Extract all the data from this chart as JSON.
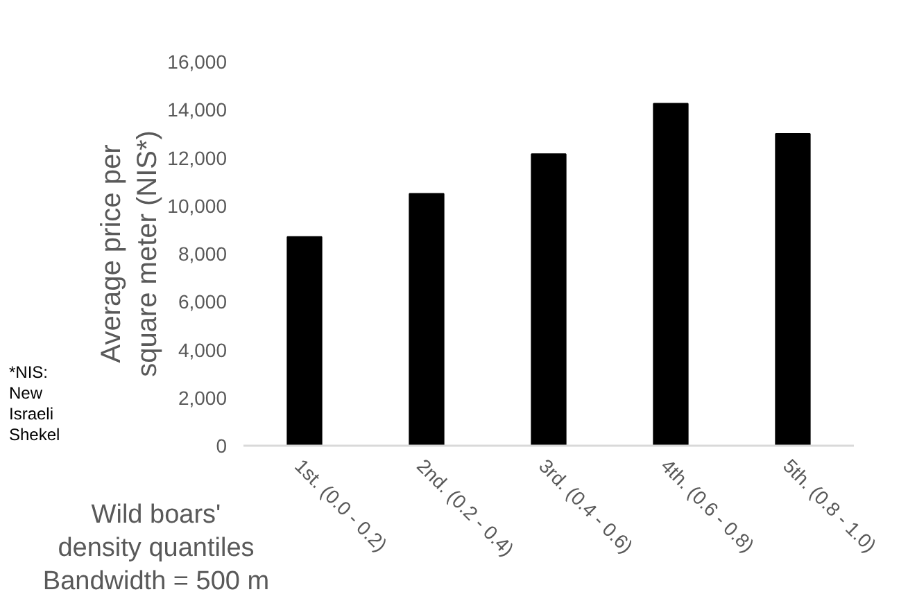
{
  "chart_data": {
    "type": "bar",
    "categories": [
      "1st. (0.0 - 0.2)",
      "2nd. (0.2 - 0.4)",
      "3rd. (0.4 - 0.6)",
      "4th. (0.6 - 0.8)",
      "5th. (0.8 - 1.0)"
    ],
    "values": [
      8700,
      10500,
      12150,
      14250,
      13000
    ],
    "color": "#000000",
    "ylabel": "Average price per\nsquare meter (NIS*)",
    "xlabel": "Wild boars'\ndensity quantiles\nBandwidth = 500 m",
    "annotations": [
      "*NIS:\nNew\nIsraeli\nShekel"
    ],
    "ylim": [
      0,
      16000
    ],
    "yticks": [
      {
        "value": 0,
        "label": "0"
      },
      {
        "value": 2000,
        "label": "2,000"
      },
      {
        "value": 4000,
        "label": "4,000"
      },
      {
        "value": 6000,
        "label": "6,000"
      },
      {
        "value": 8000,
        "label": "8,000"
      },
      {
        "value": 10000,
        "label": "10,000"
      },
      {
        "value": 12000,
        "label": "12,000"
      },
      {
        "value": 14000,
        "label": "14,000"
      },
      {
        "value": 16000,
        "label": "16,000"
      }
    ],
    "grid": false
  }
}
